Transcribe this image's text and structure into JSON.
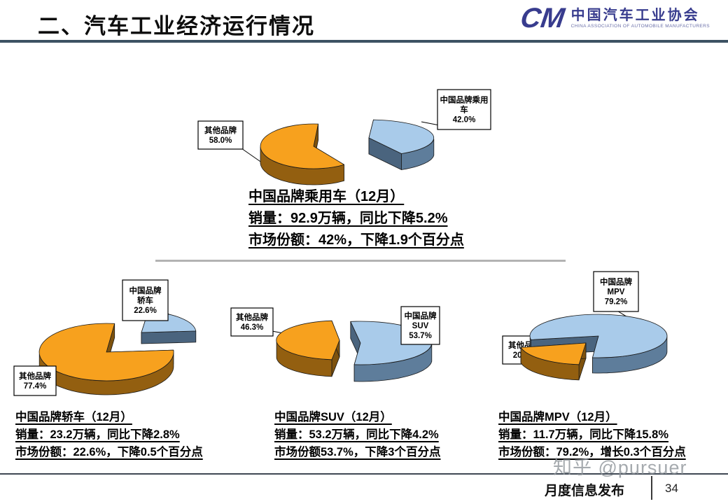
{
  "header": {
    "title": "二、汽车工业经济运行情况",
    "logo": {
      "mark": "CM",
      "name_cn": "中国汽车工业协会",
      "name_en": "CHINA ASSOCIATION OF AUTOMOBILE MANUFACTURERS"
    }
  },
  "summary": {
    "line1": "中国品牌乘用车（12月）",
    "line2": "销量：92.9万辆，同比下降5.2%",
    "line3": "市场份额：42%，下降1.9个百分点"
  },
  "chart_data": [
    {
      "type": "pie",
      "title": "中国品牌乘用车（12月）",
      "legend_position": "callout-boxes",
      "slices": [
        {
          "label": "其他品牌",
          "label_lines": [
            "其他品牌"
          ],
          "pct": "58.0%",
          "value": 58.0,
          "color": "orange"
        },
        {
          "label": "中国品牌乘用车",
          "label_lines": [
            "中国品牌乘用",
            "车"
          ],
          "pct": "42.0%",
          "value": 42.0,
          "color": "blue"
        }
      ]
    },
    {
      "type": "pie",
      "title": "中国品牌轿车（12月）",
      "legend_position": "callout-boxes",
      "slices": [
        {
          "label": "其他品牌",
          "label_lines": [
            "其他品牌"
          ],
          "pct": "77.4%",
          "value": 77.4,
          "color": "orange"
        },
        {
          "label": "中国品牌轿车",
          "label_lines": [
            "中国品牌",
            "轿车"
          ],
          "pct": "22.6%",
          "value": 22.6,
          "color": "blue"
        }
      ]
    },
    {
      "type": "pie",
      "title": "中国品牌SUV（12月）",
      "legend_position": "callout-boxes",
      "slices": [
        {
          "label": "其他品牌",
          "label_lines": [
            "其他品牌"
          ],
          "pct": "46.3%",
          "value": 46.3,
          "color": "orange"
        },
        {
          "label": "中国品牌SUV",
          "label_lines": [
            "中国品牌",
            "SUV"
          ],
          "pct": "53.7%",
          "value": 53.7,
          "color": "blue"
        }
      ]
    },
    {
      "type": "pie",
      "title": "中国品牌MPV（12月）",
      "legend_position": "callout-boxes",
      "slices": [
        {
          "label": "其他品牌",
          "label_lines": [
            "其他品牌"
          ],
          "pct": "20.8%",
          "value": 20.8,
          "color": "orange"
        },
        {
          "label": "中国品牌MPV",
          "label_lines": [
            "中国品牌",
            "MPV"
          ],
          "pct": "79.2%",
          "value": 79.2,
          "color": "blue"
        }
      ]
    }
  ],
  "details": [
    {
      "title": "中国品牌轿车（12月）",
      "line2": "销量：23.2万辆，同比下降2.8%",
      "line3": "市场份额：22.6%，下降0.5个百分点"
    },
    {
      "title": "中国品牌SUV（12月）",
      "line2": "销量：53.2万辆，同比下降4.2%",
      "line3": "市场份额53.7%，下降3个百分点"
    },
    {
      "title": "中国品牌MPV（12月）",
      "line2": "销量：11.7万辆，同比下降15.8%",
      "line3": "市场份额：79.2%，增长0.3个百分点"
    }
  ],
  "footer": {
    "label": "月度信息发布",
    "page_number": "34",
    "watermark": "知乎 @pursuer"
  },
  "colors": {
    "orange_top": "#F7A11E",
    "orange_side": "#935F10",
    "orange_cut": "#7E520D",
    "blue_top": "#A9CBEA",
    "blue_side": "#5E7D9B",
    "blue_cut": "#4A647E",
    "header_rule": "#3D5263",
    "divider": "#B3B3B3",
    "logo_navy": "#383C8E",
    "footer_rule": "#3F4854",
    "watermark_gray": "#8F959B"
  }
}
